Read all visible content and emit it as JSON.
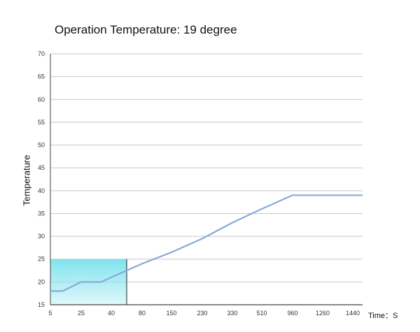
{
  "chart_data": {
    "type": "line",
    "title": "Operation Temperature: 19 degree",
    "xlabel": "Time：S",
    "ylabel": "Temperature",
    "x_categories": [
      "5",
      "25",
      "40",
      "80",
      "150",
      "230",
      "330",
      "510",
      "960",
      "1260",
      "1440"
    ],
    "ylim": [
      15,
      70
    ],
    "yticks": [
      "15",
      "20",
      "25",
      "30",
      "35",
      "40",
      "45",
      "50",
      "55",
      "60",
      "65",
      "70"
    ],
    "grid": true,
    "series": [
      {
        "color": "#8aa9d6",
        "points": [
          {
            "x": 5,
            "y": 18
          },
          {
            "x": 13,
            "y": 18
          },
          {
            "x": 25,
            "y": 20
          },
          {
            "x": 35,
            "y": 20
          },
          {
            "x": 40,
            "y": 21
          },
          {
            "x": 80,
            "y": 24
          },
          {
            "x": 150,
            "y": 26.5
          },
          {
            "x": 230,
            "y": 29.5
          },
          {
            "x": 330,
            "y": 33
          },
          {
            "x": 510,
            "y": 36
          },
          {
            "x": 960,
            "y": 39
          },
          {
            "x": 1260,
            "y": 39
          },
          {
            "x": 1440,
            "y": 39
          },
          {
            "x": 1500,
            "y": 39
          }
        ]
      }
    ],
    "highlight": {
      "x_range": [
        5,
        60
      ],
      "y_range": [
        15,
        25
      ],
      "color": "#7fe3ee"
    }
  }
}
